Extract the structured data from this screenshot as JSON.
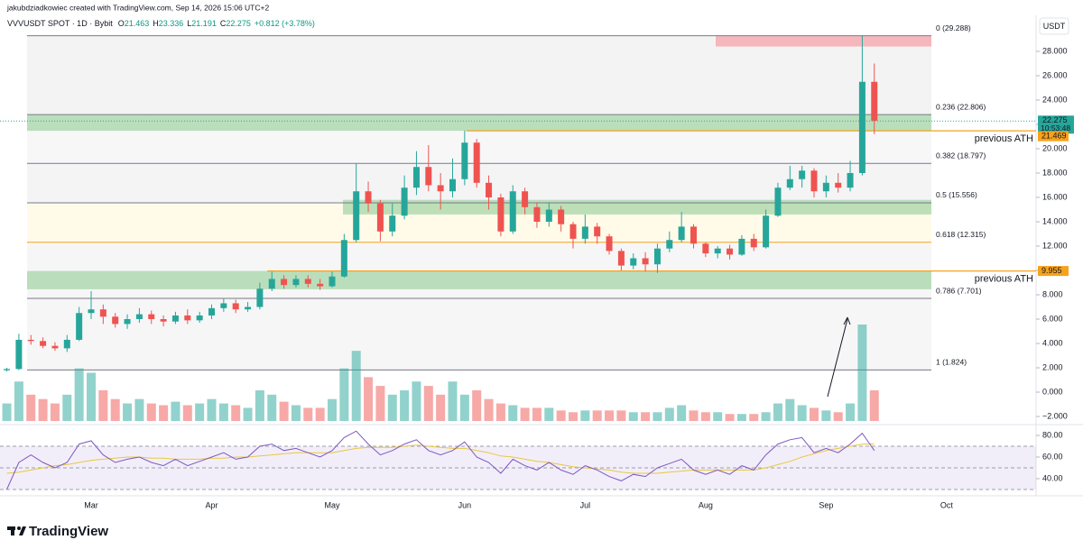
{
  "header": {
    "credit": "jakubdziadkowiec created with TradingView.com, Sep 14, 2026 15:06 UTC+2",
    "symbol": "VVVUSDT SPOT · 1D · Bybit",
    "quote": [
      {
        "key": "O",
        "value": "21.463"
      },
      {
        "key": "H",
        "value": "23.336"
      },
      {
        "key": "L",
        "value": "21.191"
      },
      {
        "key": "C",
        "value": "22.275"
      }
    ],
    "change": "+0.812 (+3.78%)"
  },
  "chart_data": {
    "type": "candlestick",
    "currency": "USDT",
    "color_up": "#26a69a",
    "color_down": "#ef5350",
    "categories": [
      null,
      null,
      null,
      null,
      null,
      null,
      null,
      "Mar",
      null,
      null,
      null,
      null,
      null,
      null,
      null,
      null,
      null,
      "Apr",
      null,
      null,
      null,
      null,
      null,
      null,
      null,
      null,
      null,
      "May",
      null,
      null,
      null,
      null,
      null,
      null,
      null,
      null,
      null,
      null,
      "Jun",
      null,
      null,
      null,
      null,
      null,
      null,
      null,
      null,
      null,
      "Jul",
      null,
      null,
      null,
      null,
      null,
      null,
      null,
      null,
      null,
      "Aug",
      null,
      null,
      null,
      null,
      null,
      null,
      null,
      null,
      null,
      "Sep",
      null,
      null,
      null,
      null,
      null,
      null,
      null,
      null,
      null,
      "Oct"
    ],
    "open": [
      1.8,
      1.9,
      4.3,
      4.2,
      3.8,
      3.6,
      4.3,
      6.5,
      6.8,
      6.2,
      5.6,
      6.0,
      6.4,
      6.0,
      5.8,
      6.3,
      5.9,
      6.3,
      6.9,
      7.3,
      6.8,
      7.0,
      8.5,
      9.3,
      8.8,
      9.3,
      8.9,
      8.7,
      9.5,
      12.5,
      16.5,
      15.5,
      13.2,
      14.5,
      16.8,
      18.5,
      17.0,
      16.5,
      17.5,
      20.5,
      17.2,
      16.0,
      13.2,
      16.5,
      15.2,
      14.0,
      15.0,
      13.8,
      12.6,
      13.6,
      12.8,
      11.6,
      10.4,
      11.0,
      10.5,
      11.8,
      12.5,
      13.6,
      12.2,
      11.4,
      11.8,
      11.3,
      12.6,
      11.9,
      14.5,
      16.8,
      17.5,
      18.2,
      16.5,
      17.2,
      16.8,
      18.0,
      25.5,
      null,
      null,
      null,
      null,
      null,
      null
    ],
    "high": [
      2.0,
      4.8,
      4.7,
      4.5,
      4.1,
      4.7,
      7.0,
      8.3,
      7.2,
      6.5,
      6.4,
      6.9,
      6.7,
      6.3,
      6.6,
      6.8,
      6.6,
      7.2,
      7.7,
      7.6,
      7.4,
      9.0,
      9.9,
      9.6,
      9.6,
      9.6,
      9.3,
      9.9,
      13.0,
      18.8,
      17.3,
      15.8,
      15.5,
      17.8,
      19.8,
      20.3,
      18.0,
      19.2,
      21.5,
      20.8,
      17.8,
      16.3,
      17.0,
      16.8,
      15.6,
      15.6,
      15.3,
      14.0,
      14.6,
      13.9,
      13.0,
      11.8,
      11.4,
      11.5,
      12.2,
      13.2,
      14.8,
      13.8,
      12.3,
      12.0,
      12.1,
      12.9,
      13.0,
      15.0,
      17.2,
      18.6,
      18.6,
      18.4,
      17.8,
      18.0,
      19.0,
      29.3,
      27.0,
      null,
      null,
      null,
      null,
      null,
      null
    ],
    "low": [
      1.7,
      1.8,
      3.9,
      3.6,
      3.4,
      3.3,
      4.2,
      6.0,
      5.6,
      5.3,
      5.2,
      5.7,
      5.6,
      5.4,
      5.6,
      5.6,
      5.7,
      6.0,
      6.6,
      6.5,
      6.6,
      6.8,
      8.3,
      8.5,
      8.6,
      8.6,
      8.4,
      8.6,
      9.4,
      12.3,
      14.8,
      12.4,
      12.8,
      14.2,
      16.2,
      16.5,
      15.0,
      16.0,
      17.0,
      16.8,
      15.0,
      12.8,
      13.0,
      14.6,
      13.5,
      13.6,
      13.2,
      11.8,
      12.2,
      12.2,
      11.3,
      10.0,
      10.1,
      9.9,
      9.8,
      11.5,
      12.3,
      11.8,
      11.1,
      11.0,
      10.9,
      11.2,
      11.6,
      11.8,
      14.4,
      16.6,
      16.8,
      16.0,
      16.0,
      16.4,
      16.5,
      17.8,
      21.2,
      null,
      null,
      null,
      null,
      null,
      null
    ],
    "close": [
      1.9,
      4.3,
      4.2,
      3.8,
      3.6,
      4.3,
      6.5,
      6.8,
      6.2,
      5.6,
      6.0,
      6.4,
      6.0,
      5.8,
      6.3,
      5.9,
      6.3,
      6.9,
      7.3,
      6.8,
      7.0,
      8.5,
      9.3,
      8.8,
      9.3,
      8.9,
      8.7,
      9.5,
      12.5,
      16.5,
      15.5,
      13.2,
      14.5,
      16.8,
      18.5,
      17.0,
      16.5,
      17.5,
      20.5,
      17.2,
      16.0,
      13.2,
      16.5,
      15.2,
      14.0,
      15.0,
      13.8,
      12.6,
      13.6,
      12.8,
      11.6,
      10.4,
      11.0,
      10.5,
      11.8,
      12.5,
      13.6,
      12.2,
      11.4,
      11.8,
      11.3,
      12.6,
      11.9,
      14.5,
      16.8,
      17.5,
      18.2,
      16.5,
      17.2,
      16.8,
      18.0,
      25.5,
      22.3,
      null,
      null,
      null,
      null,
      null,
      null
    ],
    "volume": [
      20,
      45,
      30,
      25,
      20,
      30,
      60,
      55,
      35,
      25,
      20,
      25,
      20,
      18,
      22,
      18,
      20,
      25,
      20,
      18,
      15,
      35,
      30,
      22,
      18,
      15,
      15,
      25,
      60,
      80,
      50,
      40,
      30,
      35,
      45,
      40,
      30,
      45,
      30,
      35,
      25,
      20,
      18,
      15,
      15,
      15,
      12,
      10,
      12,
      12,
      12,
      12,
      10,
      10,
      10,
      15,
      18,
      12,
      10,
      10,
      8,
      8,
      8,
      10,
      20,
      25,
      18,
      15,
      12,
      10,
      20,
      110,
      35,
      null,
      null,
      null,
      null,
      null,
      null
    ],
    "ylim": [
      -2.37,
      30.96
    ],
    "yticks": [
      {
        "value": 28,
        "label": "28.000"
      },
      {
        "value": 26,
        "label": "26.000"
      },
      {
        "value": 24,
        "label": "24.000"
      },
      {
        "value": 22,
        "label": "22.000"
      },
      {
        "value": 20,
        "label": "20.000"
      },
      {
        "value": 18,
        "label": "18.000"
      },
      {
        "value": 16,
        "label": "16.000"
      },
      {
        "value": 14,
        "label": "14.000"
      },
      {
        "value": 12,
        "label": "12.000"
      },
      {
        "value": 10,
        "label": "10.000"
      },
      {
        "value": 8,
        "label": "8.000"
      },
      {
        "value": 6,
        "label": "6.000"
      },
      {
        "value": 4,
        "label": "4.000"
      },
      {
        "value": 2,
        "label": "2.000"
      },
      {
        "value": 0,
        "label": "0.000"
      },
      {
        "value": -2,
        "label": "−2.000"
      }
    ],
    "fib_levels": [
      {
        "price": 29.288,
        "label": "0 (29.288)",
        "color": "#787b86"
      },
      {
        "price": 22.806,
        "label": "0.236 (22.806)",
        "color": "#787b86"
      },
      {
        "price": 18.797,
        "label": "0.382 (18.797)",
        "color": "#787b86"
      },
      {
        "price": 15.556,
        "label": "0.5 (15.556)",
        "color": "#787b86"
      },
      {
        "price": 12.315,
        "label": "0.618 (12.315)",
        "color": "#f7a21b"
      },
      {
        "price": 7.701,
        "label": "0.786 (7.701)",
        "color": "#787b86"
      },
      {
        "price": 1.824,
        "label": "1 (1.824)",
        "color": "#787b86"
      }
    ],
    "zones": [
      {
        "from": 28.4,
        "to": 29.288,
        "color": "#f5a3a9"
      },
      {
        "from": 21.469,
        "to": 22.806,
        "color": "#a5d6a7"
      },
      {
        "from": 14.6,
        "to": 15.8,
        "color": "#a5d6a7"
      },
      {
        "from": 8.45,
        "to": 9.955,
        "color": "#a5d6a7"
      }
    ],
    "previous_ath": [
      {
        "price": 21.469,
        "tag": "21.469",
        "label": "previous ATH"
      },
      {
        "price": 9.955,
        "tag": "9.955",
        "label": "previous ATH"
      }
    ],
    "ath_color": "#f7a21b",
    "last_price": {
      "value": 22.275,
      "label": "22.275",
      "countdown": "10:53:48"
    },
    "rsi": {
      "values": [
        30,
        55,
        62,
        55,
        50,
        55,
        72,
        75,
        62,
        55,
        58,
        60,
        55,
        52,
        58,
        52,
        56,
        60,
        64,
        58,
        60,
        70,
        72,
        66,
        68,
        64,
        60,
        66,
        78,
        84,
        72,
        62,
        66,
        72,
        76,
        66,
        62,
        66,
        74,
        60,
        55,
        45,
        58,
        52,
        48,
        55,
        48,
        44,
        52,
        48,
        42,
        38,
        44,
        42,
        50,
        54,
        58,
        48,
        44,
        48,
        44,
        52,
        48,
        62,
        72,
        76,
        78,
        64,
        68,
        64,
        72,
        82,
        66,
        null,
        null,
        null,
        null,
        null,
        null
      ],
      "ma": [
        45,
        46,
        48,
        50,
        52,
        53,
        55,
        57,
        58,
        59,
        60,
        60,
        59,
        59,
        58,
        58,
        58,
        59,
        59,
        60,
        60,
        61,
        62,
        63,
        64,
        64,
        64,
        64,
        66,
        68,
        69,
        69,
        69,
        70,
        71,
        70,
        69,
        68,
        68,
        66,
        64,
        61,
        60,
        58,
        56,
        55,
        53,
        51,
        50,
        49,
        48,
        46,
        45,
        45,
        45,
        46,
        47,
        48,
        48,
        48,
        48,
        48,
        48,
        50,
        53,
        56,
        60,
        63,
        66,
        68,
        70,
        72,
        72,
        null,
        null,
        null,
        null,
        null,
        null
      ],
      "color": "#7e57c2",
      "ma_color": "#e8c840",
      "ylim": [
        25.8,
        84.2
      ],
      "yticks": [
        {
          "value": 80,
          "label": "80.00"
        },
        {
          "value": 60,
          "label": "60.00"
        },
        {
          "value": 40,
          "label": "40.00"
        }
      ],
      "levels": [
        70,
        50,
        30
      ]
    },
    "brand": "TradingView"
  }
}
